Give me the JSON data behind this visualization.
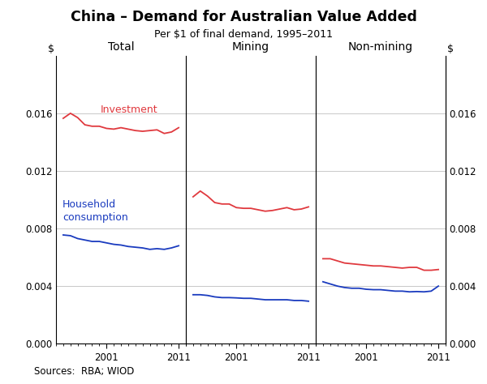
{
  "title": "China – Demand for Australian Value Added",
  "subtitle": "Per $1 of final demand, 1995–2011",
  "years": [
    1995,
    1996,
    1997,
    1998,
    1999,
    2000,
    2001,
    2002,
    2003,
    2004,
    2005,
    2006,
    2007,
    2008,
    2009,
    2010,
    2011
  ],
  "panel_labels": [
    "Total",
    "Mining",
    "Non-mining"
  ],
  "investment_color": "#e0393e",
  "consumption_color": "#1a3bbf",
  "investment_label": "Investment",
  "consumption_label": "Household\nconsumption",
  "total_investment": [
    0.01565,
    0.016,
    0.0157,
    0.0152,
    0.0151,
    0.0151,
    0.01495,
    0.0149,
    0.015,
    0.0149,
    0.0148,
    0.01475,
    0.0148,
    0.01485,
    0.0146,
    0.0147,
    0.015
  ],
  "total_consumption": [
    0.00755,
    0.0075,
    0.0073,
    0.0072,
    0.0071,
    0.0071,
    0.007,
    0.0069,
    0.00685,
    0.00675,
    0.0067,
    0.00665,
    0.00655,
    0.0066,
    0.00655,
    0.00665,
    0.0068
  ],
  "mining_investment": [
    0.0102,
    0.0106,
    0.01025,
    0.0098,
    0.0097,
    0.0097,
    0.00945,
    0.0094,
    0.0094,
    0.0093,
    0.0092,
    0.00925,
    0.00935,
    0.00945,
    0.0093,
    0.00935,
    0.0095
  ],
  "mining_consumption": [
    0.0034,
    0.0034,
    0.00335,
    0.00325,
    0.0032,
    0.0032,
    0.00318,
    0.00315,
    0.00315,
    0.0031,
    0.00305,
    0.00305,
    0.00305,
    0.00305,
    0.003,
    0.003,
    0.00295
  ],
  "nonmining_investment": [
    0.0059,
    0.0059,
    0.00575,
    0.0056,
    0.00555,
    0.0055,
    0.00545,
    0.0054,
    0.0054,
    0.00535,
    0.0053,
    0.00525,
    0.0053,
    0.0053,
    0.0051,
    0.0051,
    0.00515
  ],
  "nonmining_consumption": [
    0.0043,
    0.00415,
    0.004,
    0.0039,
    0.00385,
    0.00385,
    0.00378,
    0.00375,
    0.00375,
    0.0037,
    0.00365,
    0.00365,
    0.0036,
    0.00362,
    0.0036,
    0.00365,
    0.004
  ],
  "ylim": [
    0.0,
    0.02
  ],
  "yticks": [
    0.0,
    0.004,
    0.008,
    0.012,
    0.016
  ],
  "ylabel_left": "$",
  "ylabel_right": "$",
  "source": "Sources:  RBA; WIOD",
  "background_color": "#ffffff",
  "grid_color": "#c8c8c8"
}
